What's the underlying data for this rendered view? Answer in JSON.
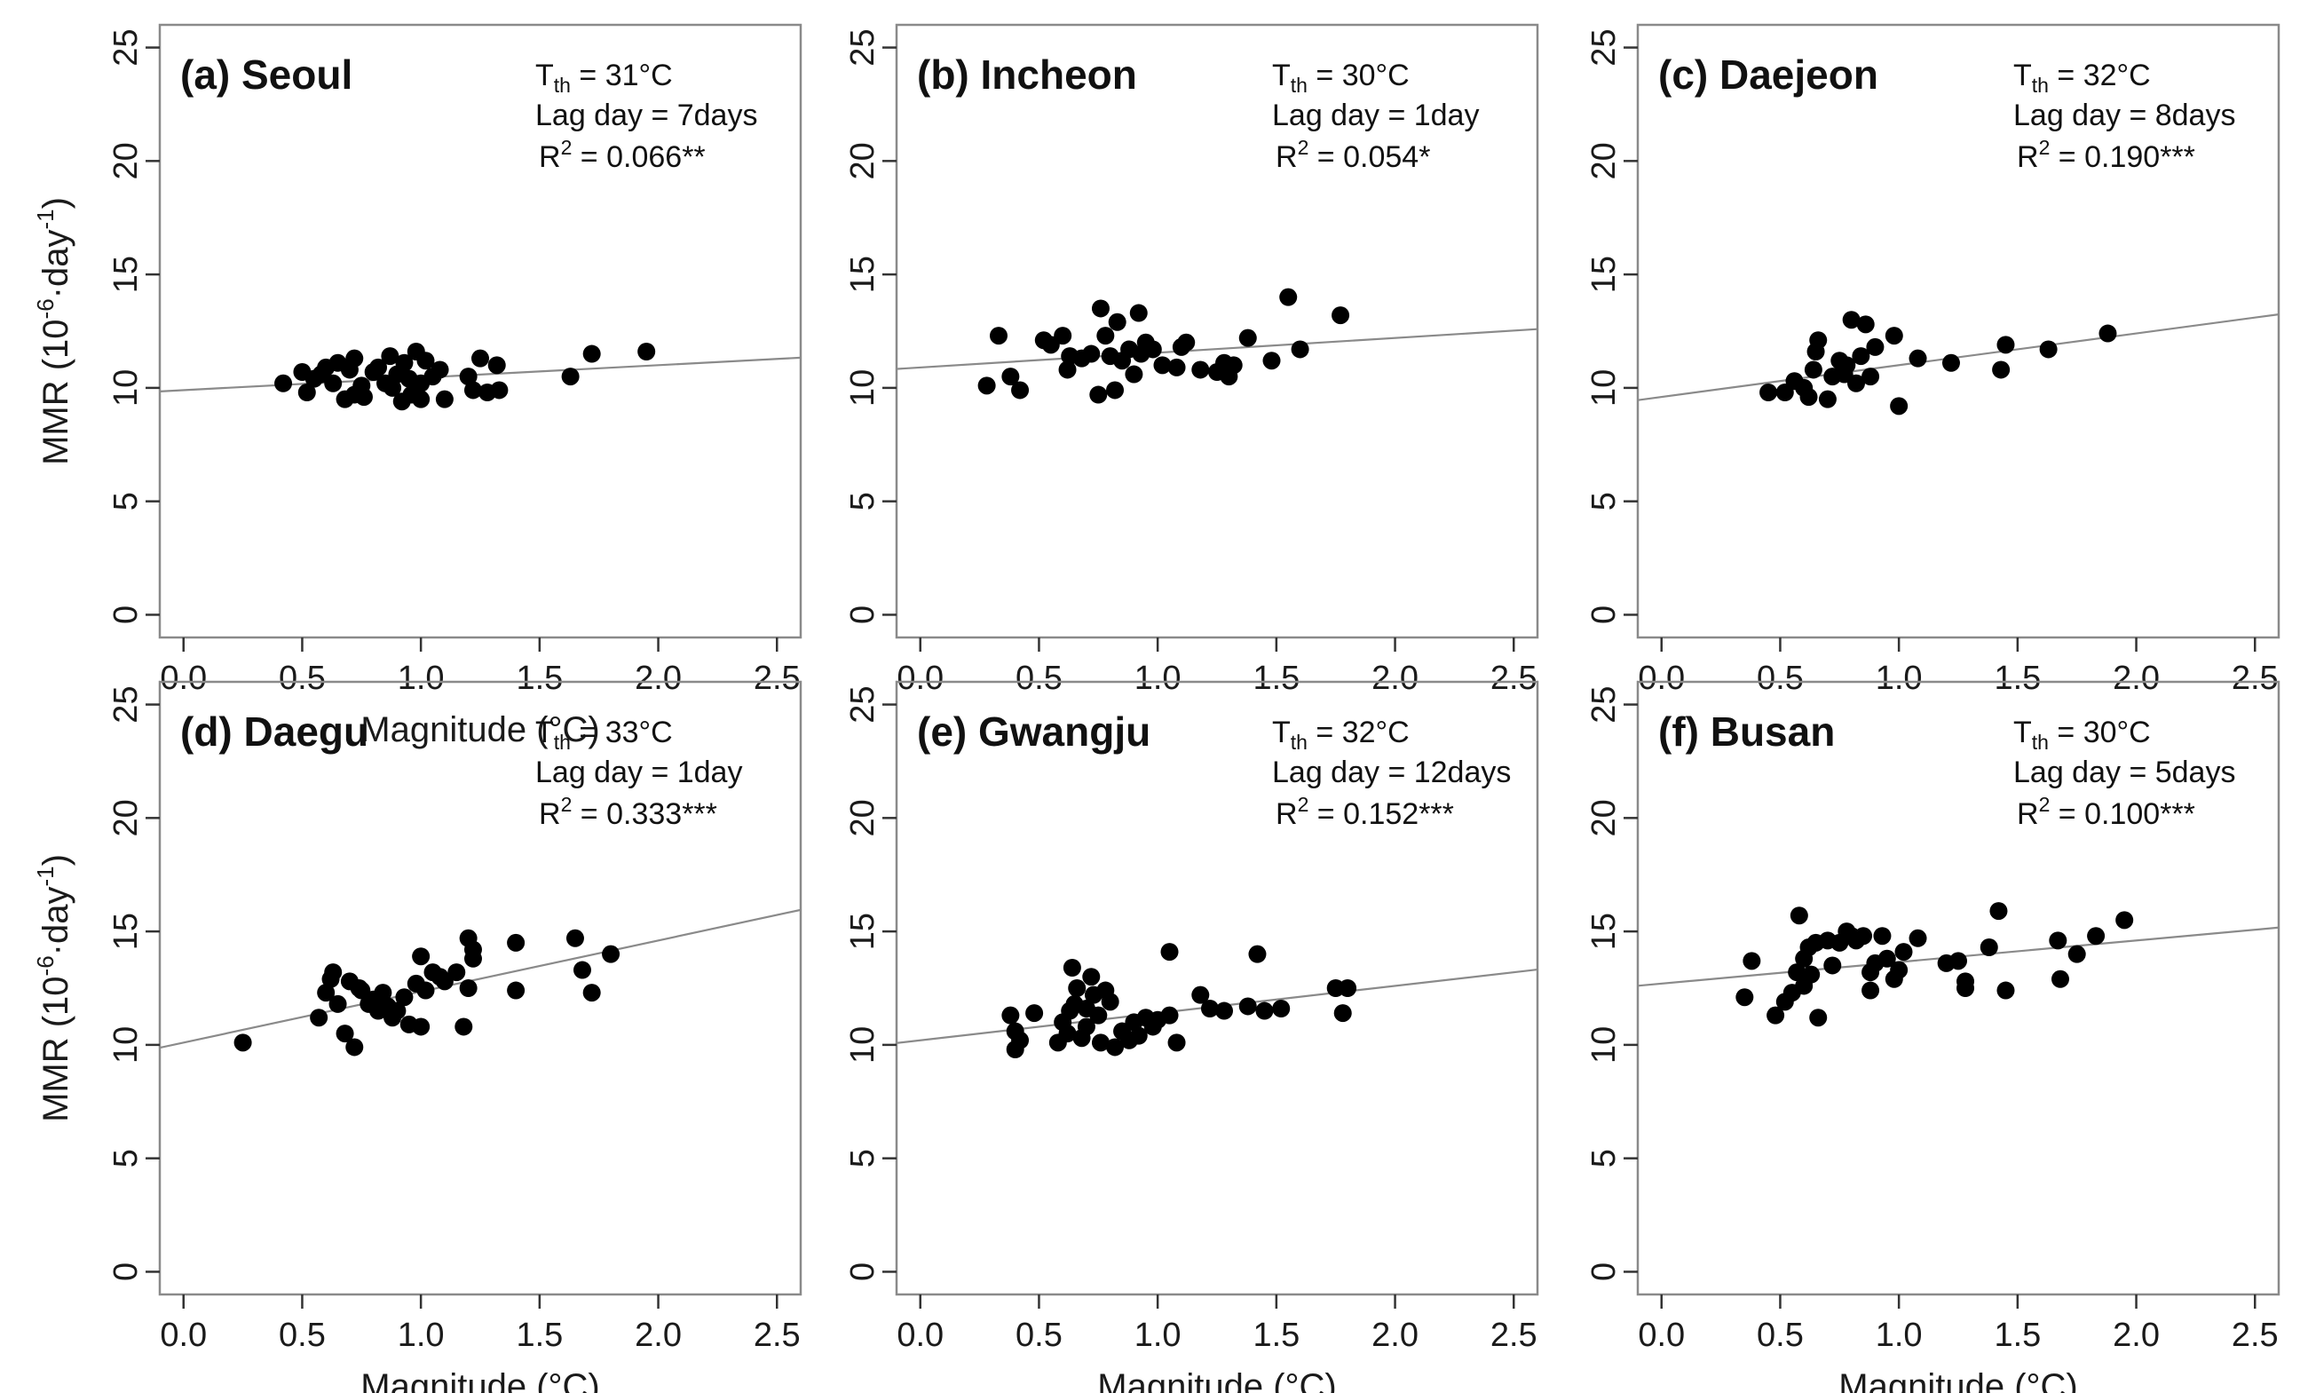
{
  "colors": {
    "point": "#000000",
    "fit_line": "#8a8a8a",
    "frame": "#8a8a8a",
    "text": "#111111"
  },
  "chart_data": [
    {
      "type": "scatter",
      "title": "(a) Seoul",
      "annotations": {
        "tth_label": "T",
        "tth_sub": "th",
        "tth_value": " = 31°C",
        "lag_text": "Lag day = 7days",
        "r2_label": "R",
        "r2_sup": "2",
        "r2_value": " = 0.066**"
      },
      "xlabel": "Magnitude (°C)",
      "ylabel": "MMR (10^-6·day^-1)",
      "xlim": [
        -0.1,
        2.6
      ],
      "ylim": [
        -1,
        26
      ],
      "xticks": [
        0.0,
        0.5,
        1.0,
        1.5,
        2.0,
        2.5
      ],
      "xtick_labels": [
        "0.0",
        "0.5",
        "1.0",
        "1.5",
        "2.0",
        "2.5"
      ],
      "yticks": [
        0,
        5,
        10,
        15,
        20,
        25
      ],
      "ytick_labels": [
        "0",
        "5",
        "10",
        "15",
        "20",
        "25"
      ],
      "fit_line": {
        "intercept": 9.9,
        "slope": 0.55
      },
      "points": [
        [
          0.42,
          10.2
        ],
        [
          0.5,
          10.7
        ],
        [
          0.52,
          9.8
        ],
        [
          0.55,
          10.4
        ],
        [
          0.58,
          10.6
        ],
        [
          0.6,
          10.9
        ],
        [
          0.63,
          10.2
        ],
        [
          0.65,
          11.1
        ],
        [
          0.68,
          9.5
        ],
        [
          0.7,
          10.8
        ],
        [
          0.72,
          11.3
        ],
        [
          0.72,
          9.7
        ],
        [
          0.75,
          10.1
        ],
        [
          0.76,
          9.6
        ],
        [
          0.8,
          10.7
        ],
        [
          0.82,
          10.9
        ],
        [
          0.85,
          10.2
        ],
        [
          0.87,
          11.4
        ],
        [
          0.88,
          10.0
        ],
        [
          0.9,
          10.6
        ],
        [
          0.92,
          9.4
        ],
        [
          0.93,
          11.1
        ],
        [
          0.95,
          10.4
        ],
        [
          0.96,
          9.7
        ],
        [
          0.98,
          11.6
        ],
        [
          1.0,
          10.2
        ],
        [
          1.0,
          9.5
        ],
        [
          1.02,
          11.2
        ],
        [
          1.05,
          10.5
        ],
        [
          1.08,
          10.8
        ],
        [
          1.1,
          9.5
        ],
        [
          1.2,
          10.5
        ],
        [
          1.22,
          9.9
        ],
        [
          1.25,
          11.3
        ],
        [
          1.28,
          9.8
        ],
        [
          1.32,
          11.0
        ],
        [
          1.33,
          9.9
        ],
        [
          1.63,
          10.5
        ],
        [
          1.72,
          11.5
        ],
        [
          1.95,
          11.6
        ]
      ]
    },
    {
      "type": "scatter",
      "title": "(b) Incheon",
      "annotations": {
        "tth_label": "T",
        "tth_sub": "th",
        "tth_value": " = 30°C",
        "lag_text": "Lag day = 1day",
        "r2_label": "R",
        "r2_sup": "2",
        "r2_value": " = 0.054*"
      },
      "xlabel": "",
      "ylabel": "",
      "xlim": [
        -0.1,
        2.6
      ],
      "ylim": [
        -1,
        26
      ],
      "xticks": [
        0.0,
        0.5,
        1.0,
        1.5,
        2.0,
        2.5
      ],
      "xtick_labels": [
        "0.0",
        "0.5",
        "1.0",
        "1.5",
        "2.0",
        "2.5"
      ],
      "yticks": [
        0,
        5,
        10,
        15,
        20,
        25
      ],
      "ytick_labels": [
        "0",
        "5",
        "10",
        "15",
        "20",
        "25"
      ],
      "fit_line": {
        "intercept": 10.9,
        "slope": 0.65
      },
      "points": [
        [
          0.28,
          10.1
        ],
        [
          0.33,
          12.3
        ],
        [
          0.38,
          10.5
        ],
        [
          0.42,
          9.9
        ],
        [
          0.52,
          12.1
        ],
        [
          0.55,
          11.9
        ],
        [
          0.6,
          12.3
        ],
        [
          0.62,
          10.8
        ],
        [
          0.63,
          11.4
        ],
        [
          0.68,
          11.3
        ],
        [
          0.72,
          11.5
        ],
        [
          0.75,
          9.7
        ],
        [
          0.76,
          13.5
        ],
        [
          0.78,
          12.3
        ],
        [
          0.8,
          11.4
        ],
        [
          0.82,
          9.9
        ],
        [
          0.83,
          12.9
        ],
        [
          0.85,
          11.2
        ],
        [
          0.88,
          11.7
        ],
        [
          0.9,
          10.6
        ],
        [
          0.92,
          13.3
        ],
        [
          0.93,
          11.5
        ],
        [
          0.95,
          12.0
        ],
        [
          0.98,
          11.7
        ],
        [
          1.02,
          11.0
        ],
        [
          1.08,
          10.9
        ],
        [
          1.1,
          11.8
        ],
        [
          1.12,
          12.0
        ],
        [
          1.18,
          10.8
        ],
        [
          1.25,
          10.7
        ],
        [
          1.28,
          11.1
        ],
        [
          1.3,
          10.5
        ],
        [
          1.32,
          11.0
        ],
        [
          1.38,
          12.2
        ],
        [
          1.48,
          11.2
        ],
        [
          1.55,
          14.0
        ],
        [
          1.6,
          11.7
        ],
        [
          1.77,
          13.2
        ]
      ]
    },
    {
      "type": "scatter",
      "title": "(c) Daejeon",
      "annotations": {
        "tth_label": "T",
        "tth_sub": "th",
        "tth_value": " = 32°C",
        "lag_text": "Lag day = 8days",
        "r2_label": "R",
        "r2_sup": "2",
        "r2_value": " = 0.190***"
      },
      "xlabel": "",
      "ylabel": "",
      "xlim": [
        -0.1,
        2.6
      ],
      "ylim": [
        -1,
        26
      ],
      "xticks": [
        0.0,
        0.5,
        1.0,
        1.5,
        2.0,
        2.5
      ],
      "xtick_labels": [
        "0.0",
        "0.5",
        "1.0",
        "1.5",
        "2.0",
        "2.5"
      ],
      "yticks": [
        0,
        5,
        10,
        15,
        20,
        25
      ],
      "ytick_labels": [
        "0",
        "5",
        "10",
        "15",
        "20",
        "25"
      ],
      "fit_line": {
        "intercept": 9.6,
        "slope": 1.4
      },
      "points": [
        [
          0.45,
          9.8
        ],
        [
          0.52,
          9.8
        ],
        [
          0.56,
          10.3
        ],
        [
          0.6,
          10.0
        ],
        [
          0.62,
          9.6
        ],
        [
          0.64,
          10.8
        ],
        [
          0.65,
          11.6
        ],
        [
          0.66,
          12.1
        ],
        [
          0.7,
          9.5
        ],
        [
          0.72,
          10.5
        ],
        [
          0.75,
          11.2
        ],
        [
          0.77,
          10.6
        ],
        [
          0.78,
          11.0
        ],
        [
          0.8,
          13.0
        ],
        [
          0.82,
          10.2
        ],
        [
          0.84,
          11.4
        ],
        [
          0.86,
          12.8
        ],
        [
          0.88,
          10.5
        ],
        [
          0.9,
          11.8
        ],
        [
          0.98,
          12.3
        ],
        [
          1.0,
          9.2
        ],
        [
          1.08,
          11.3
        ],
        [
          1.22,
          11.1
        ],
        [
          1.43,
          10.8
        ],
        [
          1.45,
          11.9
        ],
        [
          1.63,
          11.7
        ],
        [
          1.88,
          12.4
        ]
      ]
    },
    {
      "type": "scatter",
      "title": "(d) Daegu",
      "annotations": {
        "tth_label": "T",
        "tth_sub": "th",
        "tth_value": " = 33°C",
        "lag_text": "Lag day = 1day",
        "r2_label": "R",
        "r2_sup": "2",
        "r2_value": " = 0.333***"
      },
      "xlabel": "Magnitude (°C)",
      "ylabel": "MMR (10^-6·day^-1)",
      "xlim": [
        -0.1,
        2.6
      ],
      "ylim": [
        -1,
        26
      ],
      "xticks": [
        0.0,
        0.5,
        1.0,
        1.5,
        2.0,
        2.5
      ],
      "xtick_labels": [
        "0.0",
        "0.5",
        "1.0",
        "1.5",
        "2.0",
        "2.5"
      ],
      "yticks": [
        0,
        5,
        10,
        15,
        20,
        25
      ],
      "ytick_labels": [
        "0",
        "5",
        "10",
        "15",
        "20",
        "25"
      ],
      "fit_line": {
        "intercept": 10.1,
        "slope": 2.25
      },
      "points": [
        [
          0.25,
          10.1
        ],
        [
          0.57,
          11.2
        ],
        [
          0.6,
          12.3
        ],
        [
          0.62,
          12.9
        ],
        [
          0.63,
          13.2
        ],
        [
          0.65,
          11.8
        ],
        [
          0.68,
          10.5
        ],
        [
          0.7,
          12.8
        ],
        [
          0.72,
          9.9
        ],
        [
          0.74,
          12.5
        ],
        [
          0.75,
          12.4
        ],
        [
          0.78,
          11.8
        ],
        [
          0.8,
          12.0
        ],
        [
          0.82,
          11.5
        ],
        [
          0.84,
          12.3
        ],
        [
          0.86,
          11.7
        ],
        [
          0.88,
          11.2
        ],
        [
          0.9,
          11.5
        ],
        [
          0.93,
          12.1
        ],
        [
          0.95,
          10.9
        ],
        [
          0.98,
          12.7
        ],
        [
          1.0,
          13.9
        ],
        [
          1.0,
          10.8
        ],
        [
          1.02,
          12.4
        ],
        [
          1.05,
          13.2
        ],
        [
          1.08,
          13.0
        ],
        [
          1.1,
          12.8
        ],
        [
          1.15,
          13.2
        ],
        [
          1.18,
          10.8
        ],
        [
          1.2,
          12.5
        ],
        [
          1.2,
          14.7
        ],
        [
          1.22,
          13.8
        ],
        [
          1.22,
          14.2
        ],
        [
          1.4,
          14.5
        ],
        [
          1.4,
          12.4
        ],
        [
          1.65,
          14.7
        ],
        [
          1.68,
          13.3
        ],
        [
          1.72,
          12.3
        ],
        [
          1.8,
          14.0
        ]
      ]
    },
    {
      "type": "scatter",
      "title": "(e) Gwangju",
      "annotations": {
        "tth_label": "T",
        "tth_sub": "th",
        "tth_value": " = 32°C",
        "lag_text": "Lag day = 12days",
        "r2_label": "R",
        "r2_sup": "2",
        "r2_value": " = 0.152***"
      },
      "xlabel": "Magnitude (°C)",
      "ylabel": "",
      "xlim": [
        -0.1,
        2.6
      ],
      "ylim": [
        -1,
        26
      ],
      "xticks": [
        0.0,
        0.5,
        1.0,
        1.5,
        2.0,
        2.5
      ],
      "xtick_labels": [
        "0.0",
        "0.5",
        "1.0",
        "1.5",
        "2.0",
        "2.5"
      ],
      "yticks": [
        0,
        5,
        10,
        15,
        20,
        25
      ],
      "ytick_labels": [
        "0",
        "5",
        "10",
        "15",
        "20",
        "25"
      ],
      "fit_line": {
        "intercept": 10.2,
        "slope": 1.2
      },
      "points": [
        [
          0.38,
          11.3
        ],
        [
          0.4,
          10.6
        ],
        [
          0.4,
          9.8
        ],
        [
          0.42,
          10.2
        ],
        [
          0.48,
          11.4
        ],
        [
          0.58,
          10.1
        ],
        [
          0.6,
          11.0
        ],
        [
          0.62,
          10.5
        ],
        [
          0.63,
          11.5
        ],
        [
          0.64,
          13.4
        ],
        [
          0.65,
          11.8
        ],
        [
          0.66,
          12.5
        ],
        [
          0.68,
          10.3
        ],
        [
          0.7,
          11.6
        ],
        [
          0.7,
          10.8
        ],
        [
          0.72,
          13.0
        ],
        [
          0.73,
          12.2
        ],
        [
          0.75,
          11.3
        ],
        [
          0.76,
          10.1
        ],
        [
          0.78,
          12.4
        ],
        [
          0.8,
          11.9
        ],
        [
          0.82,
          9.9
        ],
        [
          0.85,
          10.6
        ],
        [
          0.88,
          10.2
        ],
        [
          0.9,
          11.0
        ],
        [
          0.92,
          10.4
        ],
        [
          0.95,
          11.2
        ],
        [
          0.98,
          10.8
        ],
        [
          1.0,
          11.1
        ],
        [
          1.05,
          14.1
        ],
        [
          1.05,
          11.3
        ],
        [
          1.08,
          10.1
        ],
        [
          1.18,
          12.2
        ],
        [
          1.22,
          11.6
        ],
        [
          1.28,
          11.5
        ],
        [
          1.38,
          11.7
        ],
        [
          1.42,
          14.0
        ],
        [
          1.45,
          11.5
        ],
        [
          1.52,
          11.6
        ],
        [
          1.75,
          12.5
        ],
        [
          1.78,
          11.4
        ],
        [
          1.8,
          12.5
        ]
      ]
    },
    {
      "type": "scatter",
      "title": "(f) Busan",
      "annotations": {
        "tth_label": "T",
        "tth_sub": "th",
        "tth_value": " = 30°C",
        "lag_text": "Lag day = 5days",
        "r2_label": "R",
        "r2_sup": "2",
        "r2_value": " = 0.100***"
      },
      "xlabel": "Magnitude (°C)",
      "ylabel": "",
      "xlim": [
        -0.1,
        2.6
      ],
      "ylim": [
        -1,
        26
      ],
      "xticks": [
        0.0,
        0.5,
        1.0,
        1.5,
        2.0,
        2.5
      ],
      "xtick_labels": [
        "0.0",
        "0.5",
        "1.0",
        "1.5",
        "2.0",
        "2.5"
      ],
      "yticks": [
        0,
        5,
        10,
        15,
        20,
        25
      ],
      "ytick_labels": [
        "0",
        "5",
        "10",
        "15",
        "20",
        "25"
      ],
      "fit_line": {
        "intercept": 12.7,
        "slope": 0.95
      },
      "points": [
        [
          0.35,
          12.1
        ],
        [
          0.38,
          13.7
        ],
        [
          0.48,
          11.3
        ],
        [
          0.52,
          11.9
        ],
        [
          0.55,
          12.3
        ],
        [
          0.57,
          13.2
        ],
        [
          0.58,
          15.7
        ],
        [
          0.6,
          13.8
        ],
        [
          0.6,
          12.6
        ],
        [
          0.62,
          14.3
        ],
        [
          0.63,
          13.1
        ],
        [
          0.65,
          14.5
        ],
        [
          0.66,
          11.2
        ],
        [
          0.7,
          14.6
        ],
        [
          0.72,
          13.5
        ],
        [
          0.75,
          14.5
        ],
        [
          0.78,
          15.0
        ],
        [
          0.8,
          14.8
        ],
        [
          0.82,
          14.6
        ],
        [
          0.85,
          14.8
        ],
        [
          0.88,
          13.2
        ],
        [
          0.88,
          12.4
        ],
        [
          0.9,
          13.6
        ],
        [
          0.93,
          14.8
        ],
        [
          0.95,
          13.8
        ],
        [
          0.98,
          12.9
        ],
        [
          1.0,
          13.3
        ],
        [
          1.02,
          14.1
        ],
        [
          1.08,
          14.7
        ],
        [
          1.2,
          13.6
        ],
        [
          1.25,
          13.7
        ],
        [
          1.28,
          12.5
        ],
        [
          1.28,
          12.8
        ],
        [
          1.38,
          14.3
        ],
        [
          1.42,
          15.9
        ],
        [
          1.45,
          12.4
        ],
        [
          1.67,
          14.6
        ],
        [
          1.68,
          12.9
        ],
        [
          1.75,
          14.0
        ],
        [
          1.83,
          14.8
        ],
        [
          1.95,
          15.5
        ]
      ]
    }
  ]
}
